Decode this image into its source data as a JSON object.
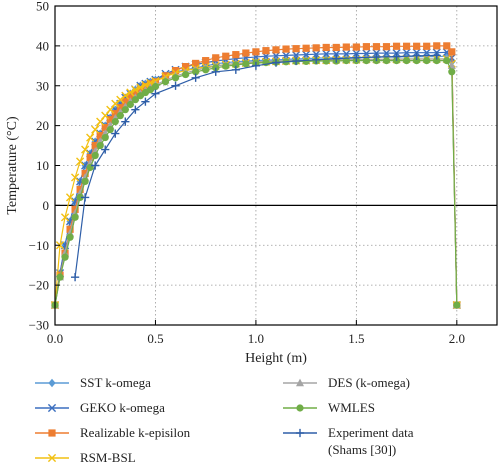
{
  "chart_data": {
    "type": "line",
    "xlabel": "Height (m)",
    "ylabel": "Temperature (°C)",
    "xlim": [
      0,
      2.2
    ],
    "ylim": [
      -30,
      50
    ],
    "x_ticks": [
      "0.0",
      "0.5",
      "1.0",
      "1.5",
      "2.0"
    ],
    "y_ticks": [
      "−30",
      "−20",
      "−10",
      "0",
      "10",
      "20",
      "30",
      "40",
      "50"
    ],
    "grid": true,
    "legend_position": "bottom",
    "series": [
      {
        "name": "SST k-omega",
        "color": "#5b9bd5",
        "marker": "diamond",
        "x": [
          0.0,
          0.025,
          0.05,
          0.075,
          0.1,
          0.125,
          0.15,
          0.175,
          0.2,
          0.225,
          0.25,
          0.275,
          0.3,
          0.325,
          0.35,
          0.375,
          0.4,
          0.425,
          0.45,
          0.475,
          0.5,
          0.55,
          0.6,
          0.65,
          0.7,
          0.75,
          0.8,
          0.85,
          0.9,
          0.95,
          1.0,
          1.05,
          1.1,
          1.15,
          1.2,
          1.25,
          1.3,
          1.35,
          1.4,
          1.45,
          1.5,
          1.55,
          1.6,
          1.65,
          1.7,
          1.75,
          1.8,
          1.85,
          1.9,
          1.95,
          1.975,
          2.0
        ],
        "y": [
          -25,
          -17,
          -10,
          -4,
          1,
          6,
          10,
          13,
          16,
          18,
          20,
          22,
          24,
          25.5,
          27,
          28,
          29,
          30,
          30.5,
          31,
          31.5,
          32.5,
          33.5,
          34,
          34.5,
          35,
          35.5,
          35.8,
          36,
          36.2,
          36.3,
          36.4,
          36.5,
          36.6,
          36.7,
          36.8,
          36.9,
          37,
          37,
          37,
          37.1,
          37.1,
          37.2,
          37.2,
          37.2,
          37.3,
          37.3,
          37.3,
          37.3,
          37.4,
          36,
          -25
        ]
      },
      {
        "name": "GEKO k-omega",
        "color": "#3b6fbf",
        "marker": "x",
        "x": [
          0.0,
          0.025,
          0.05,
          0.075,
          0.1,
          0.125,
          0.15,
          0.175,
          0.2,
          0.225,
          0.25,
          0.275,
          0.3,
          0.325,
          0.35,
          0.375,
          0.4,
          0.425,
          0.45,
          0.475,
          0.5,
          0.55,
          0.6,
          0.65,
          0.7,
          0.75,
          0.8,
          0.85,
          0.9,
          0.95,
          1.0,
          1.05,
          1.1,
          1.15,
          1.2,
          1.25,
          1.3,
          1.35,
          1.4,
          1.45,
          1.5,
          1.55,
          1.6,
          1.65,
          1.7,
          1.75,
          1.8,
          1.85,
          1.9,
          1.95,
          1.975,
          2.0
        ],
        "y": [
          -25,
          -17,
          -10,
          -4,
          1,
          6,
          10,
          13,
          16,
          18,
          20,
          22,
          24,
          25.5,
          27,
          28,
          29,
          30,
          30.5,
          31,
          31.5,
          33,
          34,
          34.8,
          35.3,
          35.8,
          36.2,
          36.5,
          36.8,
          37,
          37.2,
          37.4,
          37.5,
          37.6,
          37.7,
          37.8,
          37.9,
          38,
          38,
          38,
          38.1,
          38.1,
          38.2,
          38.2,
          38.2,
          38.3,
          38.3,
          38.3,
          38.3,
          38.4,
          37,
          -25
        ]
      },
      {
        "name": "Realizable k-episilon",
        "color": "#ed7d31",
        "marker": "square",
        "x": [
          0.0,
          0.025,
          0.05,
          0.075,
          0.1,
          0.125,
          0.15,
          0.175,
          0.2,
          0.225,
          0.25,
          0.275,
          0.3,
          0.325,
          0.35,
          0.375,
          0.4,
          0.425,
          0.45,
          0.475,
          0.5,
          0.55,
          0.6,
          0.65,
          0.7,
          0.75,
          0.8,
          0.85,
          0.9,
          0.95,
          1.0,
          1.05,
          1.1,
          1.15,
          1.2,
          1.25,
          1.3,
          1.35,
          1.4,
          1.45,
          1.5,
          1.55,
          1.6,
          1.65,
          1.7,
          1.75,
          1.8,
          1.85,
          1.9,
          1.95,
          1.975,
          2.0
        ],
        "y": [
          -25,
          -17.5,
          -12,
          -6,
          -1,
          4,
          8,
          12,
          15,
          17.5,
          19.5,
          21.5,
          23,
          24.5,
          26,
          27,
          28,
          29,
          29.8,
          30.5,
          31,
          32.5,
          33.8,
          34.8,
          35.6,
          36.3,
          37,
          37.4,
          37.8,
          38.2,
          38.5,
          38.8,
          39,
          39.2,
          39.3,
          39.4,
          39.5,
          39.6,
          39.6,
          39.7,
          39.7,
          39.8,
          39.8,
          39.8,
          39.9,
          39.9,
          39.9,
          39.9,
          40,
          40,
          38.5,
          -25
        ]
      },
      {
        "name": "RSM-BSL",
        "color": "#f2c012",
        "marker": "x",
        "x": [
          0.0,
          0.025,
          0.05,
          0.075,
          0.1,
          0.125,
          0.15,
          0.175,
          0.2,
          0.225,
          0.25,
          0.275,
          0.3,
          0.325,
          0.35,
          0.375,
          0.4,
          0.425,
          0.45,
          0.475,
          0.5,
          0.55,
          0.6,
          0.65,
          0.7,
          0.75,
          0.8,
          0.85,
          0.9,
          0.95,
          1.0,
          1.05,
          1.1,
          1.15,
          1.2,
          1.25,
          1.3,
          1.35,
          1.4,
          1.45,
          1.5,
          1.55,
          1.6,
          1.65,
          1.7,
          1.75,
          1.8,
          1.85,
          1.9,
          1.95,
          1.975,
          2.0
        ],
        "y": [
          -25,
          -10,
          -3,
          2,
          7,
          11,
          14,
          17,
          19,
          21,
          22.5,
          24,
          25.5,
          26.5,
          27.5,
          28.3,
          29,
          29.6,
          30.2,
          30.7,
          31.2,
          32.3,
          33.2,
          33.8,
          34.3,
          34.7,
          35,
          35.3,
          35.5,
          35.7,
          35.9,
          36,
          36.1,
          36.2,
          36.3,
          36.3,
          36.4,
          36.4,
          36.5,
          36.5,
          36.5,
          36.6,
          36.6,
          36.6,
          36.6,
          36.7,
          36.7,
          36.7,
          36.7,
          36.7,
          35.5,
          -25
        ]
      },
      {
        "name": "DES (k-omega)",
        "color": "#a5a5a5",
        "marker": "triangle",
        "x": [
          0.0,
          0.025,
          0.05,
          0.075,
          0.1,
          0.125,
          0.15,
          0.175,
          0.2,
          0.225,
          0.25,
          0.275,
          0.3,
          0.325,
          0.35,
          0.375,
          0.4,
          0.425,
          0.45,
          0.475,
          0.5,
          0.55,
          0.6,
          0.65,
          0.7,
          0.75,
          0.8,
          0.85,
          0.9,
          0.95,
          1.0,
          1.05,
          1.1,
          1.15,
          1.2,
          1.25,
          1.3,
          1.35,
          1.4,
          1.45,
          1.5,
          1.55,
          1.6,
          1.65,
          1.7,
          1.75,
          1.8,
          1.85,
          1.9,
          1.95,
          1.975,
          2.0
        ],
        "y": [
          -25,
          -18,
          -12,
          -7,
          -2,
          3,
          7,
          10.5,
          13.5,
          16,
          18,
          20,
          21.8,
          23.3,
          24.7,
          26,
          27,
          28,
          28.8,
          29.5,
          30.2,
          31.4,
          32.4,
          33.2,
          33.9,
          34.4,
          34.9,
          35.3,
          35.6,
          35.8,
          36,
          36.1,
          36.2,
          36.3,
          36.4,
          36.4,
          36.5,
          36.5,
          36.5,
          36.6,
          36.6,
          36.6,
          36.6,
          36.6,
          36.7,
          36.7,
          36.7,
          36.7,
          36.7,
          36.7,
          35,
          -25
        ]
      },
      {
        "name": "WMLES",
        "color": "#70ad47",
        "marker": "circle",
        "x": [
          0.0,
          0.025,
          0.05,
          0.075,
          0.1,
          0.125,
          0.15,
          0.175,
          0.2,
          0.225,
          0.25,
          0.275,
          0.3,
          0.325,
          0.35,
          0.375,
          0.4,
          0.425,
          0.45,
          0.475,
          0.5,
          0.55,
          0.6,
          0.65,
          0.7,
          0.75,
          0.8,
          0.85,
          0.9,
          0.95,
          1.0,
          1.05,
          1.1,
          1.15,
          1.2,
          1.25,
          1.3,
          1.35,
          1.4,
          1.45,
          1.5,
          1.55,
          1.6,
          1.65,
          1.7,
          1.75,
          1.8,
          1.85,
          1.9,
          1.95,
          1.975,
          2.0
        ],
        "y": [
          -25,
          -18,
          -13,
          -8,
          -3,
          2,
          6,
          9.5,
          12.5,
          15,
          17,
          19,
          21,
          22.5,
          24,
          25.3,
          26.5,
          27.5,
          28.3,
          29,
          29.8,
          31,
          32,
          32.8,
          33.5,
          34,
          34.5,
          34.9,
          35.2,
          35.5,
          35.7,
          35.8,
          35.9,
          36,
          36.1,
          36.1,
          36.2,
          36.2,
          36.2,
          36.3,
          36.3,
          36.3,
          36.3,
          36.3,
          36.3,
          36.3,
          36.3,
          36.3,
          36.3,
          36.3,
          33.5,
          -25
        ]
      },
      {
        "name": "Experiment data (Shams [30])",
        "color": "#2e5ea8",
        "marker": "plus",
        "x": [
          0.1,
          0.15,
          0.2,
          0.25,
          0.3,
          0.35,
          0.4,
          0.45,
          0.5,
          0.6,
          0.7,
          0.8,
          0.9,
          1.0,
          1.1,
          1.2,
          1.3,
          1.4,
          1.5,
          1.6,
          1.7,
          1.8,
          1.9
        ],
        "y": [
          -18,
          2,
          10,
          14,
          18,
          21,
          24,
          26,
          28,
          30,
          32,
          33.5,
          34,
          35,
          35.8,
          36.2,
          36.5,
          36.8,
          37,
          37.2,
          37.3,
          37.5,
          37.6
        ]
      }
    ]
  }
}
